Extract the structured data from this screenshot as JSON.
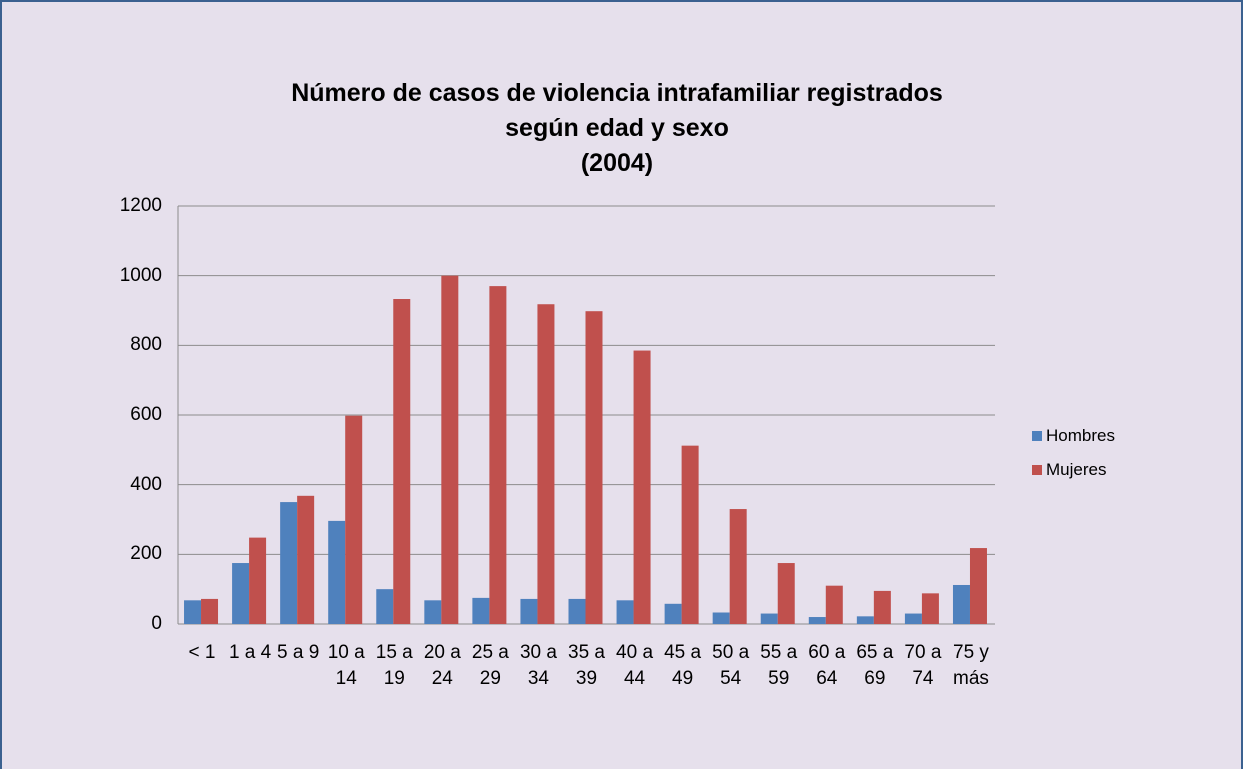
{
  "chart_data": {
    "type": "bar",
    "title": "Número de casos de violencia intrafamiliar registrados\nsegún edad y sexo\n(2004)",
    "categories": [
      "< 1",
      "1 a 4",
      "5 a 9",
      "10 a 14",
      "15 a 19",
      "20 a 24",
      "25 a 29",
      "30 a 34",
      "35 a 39",
      "40 a 44",
      "45 a 49",
      "50 a 54",
      "55 a 59",
      "60 a 64",
      "65 a 69",
      "70 a 74",
      "75 y más"
    ],
    "series": [
      {
        "name": "Hombres",
        "color": "#4f81bd",
        "values": [
          68,
          175,
          350,
          296,
          100,
          68,
          75,
          72,
          72,
          68,
          58,
          33,
          30,
          20,
          22,
          30,
          112
        ]
      },
      {
        "name": "Mujeres",
        "color": "#c0504d",
        "values": [
          72,
          248,
          368,
          598,
          933,
          1000,
          970,
          918,
          898,
          785,
          512,
          330,
          175,
          110,
          95,
          88,
          218
        ]
      }
    ],
    "ylim": [
      0,
      1200
    ],
    "yticks": [
      0,
      200,
      400,
      600,
      800,
      1000,
      1200
    ],
    "grid": true,
    "legend": "right"
  }
}
